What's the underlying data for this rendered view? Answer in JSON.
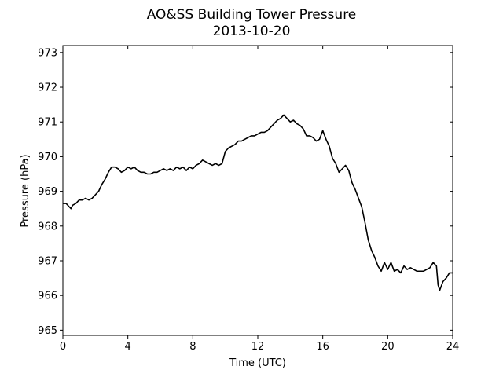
{
  "chart_data": {
    "type": "line",
    "title": "AO&SS Building Tower Pressure",
    "subtitle": "2013-10-20",
    "xlabel": "Time (UTC)",
    "ylabel": "Pressure (hPa)",
    "xlim": [
      0,
      24
    ],
    "ylim": [
      964.85,
      973.2
    ],
    "x_ticks": [
      0,
      4,
      8,
      12,
      16,
      20,
      24
    ],
    "y_ticks": [
      965,
      966,
      967,
      968,
      969,
      970,
      971,
      972,
      973
    ],
    "grid": false,
    "line_color": "#000000",
    "series": [
      {
        "x": [
          0,
          0.2,
          0.4,
          0.5,
          0.6,
          0.8,
          1.0,
          1.2,
          1.4,
          1.6,
          1.8,
          2.0,
          2.2,
          2.4,
          2.6,
          2.8,
          3.0,
          3.2,
          3.4,
          3.6,
          3.8,
          4.0,
          4.2,
          4.4,
          4.6,
          4.8,
          5.0,
          5.2,
          5.4,
          5.6,
          5.8,
          6.0,
          6.2,
          6.4,
          6.6,
          6.8,
          7.0,
          7.2,
          7.4,
          7.6,
          7.8,
          8.0,
          8.2,
          8.4,
          8.6,
          8.8,
          9.0,
          9.2,
          9.4,
          9.6,
          9.8,
          10.0,
          10.2,
          10.4,
          10.6,
          10.8,
          11.0,
          11.2,
          11.4,
          11.6,
          11.8,
          12.0,
          12.2,
          12.4,
          12.6,
          12.8,
          13.0,
          13.2,
          13.4,
          13.6,
          13.8,
          14.0,
          14.2,
          14.4,
          14.6,
          14.8,
          15.0,
          15.2,
          15.4,
          15.6,
          15.8,
          16.0,
          16.2,
          16.4,
          16.6,
          16.8,
          17.0,
          17.2,
          17.4,
          17.6,
          17.8,
          18.0,
          18.2,
          18.4,
          18.6,
          18.8,
          19.0,
          19.2,
          19.4,
          19.6,
          19.8,
          20.0,
          20.2,
          20.4,
          20.6,
          20.8,
          21.0,
          21.2,
          21.4,
          21.6,
          21.8,
          22.0,
          22.2,
          22.4,
          22.6,
          22.8,
          23.0,
          23.1,
          23.2,
          23.4,
          23.6,
          23.8,
          24.0
        ],
        "y": [
          968.65,
          968.65,
          968.55,
          968.5,
          968.6,
          968.65,
          968.75,
          968.75,
          968.8,
          968.75,
          968.8,
          968.9,
          969.0,
          969.2,
          969.35,
          969.55,
          969.7,
          969.7,
          969.65,
          969.55,
          969.6,
          969.7,
          969.65,
          969.7,
          969.6,
          969.55,
          969.55,
          969.5,
          969.5,
          969.55,
          969.55,
          969.6,
          969.65,
          969.6,
          969.65,
          969.6,
          969.7,
          969.65,
          969.7,
          969.6,
          969.7,
          969.65,
          969.75,
          969.8,
          969.9,
          969.85,
          969.8,
          969.75,
          969.8,
          969.75,
          969.8,
          970.15,
          970.25,
          970.3,
          970.35,
          970.45,
          970.45,
          970.5,
          970.55,
          970.6,
          970.6,
          970.65,
          970.7,
          970.7,
          970.75,
          970.85,
          970.95,
          971.05,
          971.1,
          971.2,
          971.1,
          971.0,
          971.05,
          970.95,
          970.9,
          970.8,
          970.6,
          970.6,
          970.55,
          970.45,
          970.5,
          970.75,
          970.5,
          970.3,
          969.95,
          969.8,
          969.55,
          969.65,
          969.75,
          969.6,
          969.25,
          969.05,
          968.8,
          968.55,
          968.1,
          967.6,
          967.3,
          967.1,
          966.85,
          966.7,
          966.95,
          966.75,
          966.95,
          966.7,
          966.75,
          966.65,
          966.85,
          966.75,
          966.8,
          966.75,
          966.7,
          966.7,
          966.7,
          966.75,
          966.8,
          966.95,
          966.85,
          966.3,
          966.15,
          966.4,
          966.5,
          966.65,
          966.65
        ]
      }
    ]
  }
}
